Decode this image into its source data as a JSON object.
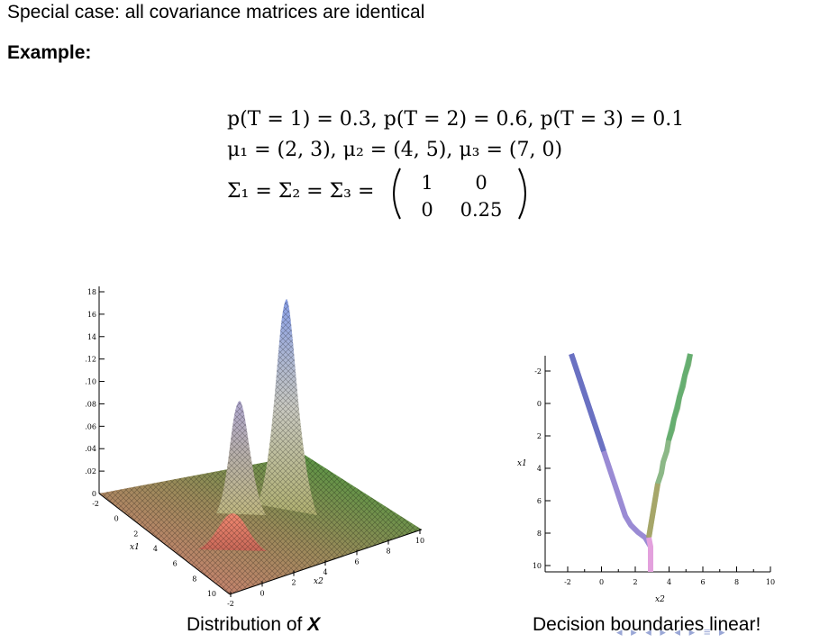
{
  "slide": {
    "heading": "Special case: all covariance matrices are identical",
    "example_label": "Example:",
    "eq_priors": "p(T = 1) = 0.3,  p(T = 2) = 0.6,  p(T = 3) = 0.1",
    "eq_means": "μ₁ = (2, 3),  μ₂ = (4, 5),  μ₃ = (7, 0)",
    "eq_cov_lhs": "Σ₁ = Σ₂ = Σ₃ =",
    "matrix": [
      [
        "1",
        "0"
      ],
      [
        "0",
        "0.25"
      ]
    ],
    "caption_left_text": "Distribution of ",
    "caption_left_var": "X",
    "caption_right": "Decision boundaries linear!",
    "nav_symbols": "◂ ▸ ◂ ▸ ◂ ▸ ≡ ▸"
  },
  "surface_plot": {
    "z_ticks": [
      "18",
      "16",
      "14",
      ".12",
      ".10",
      ".08",
      ".06",
      ".04",
      ".02",
      "0"
    ],
    "x1_ticks": [
      "-2",
      "0",
      "2",
      "4",
      "6",
      "8",
      "10"
    ],
    "x2_ticks": [
      "-2",
      "0",
      "2",
      "4",
      "6",
      "8",
      "10"
    ],
    "x1_label": "x1",
    "x2_label": "x2"
  },
  "boundary_plot": {
    "y_ticks": [
      "-2",
      "0",
      "2",
      "4",
      "6",
      "8",
      "10"
    ],
    "x_ticks": [
      "-2",
      "0",
      "2",
      "4",
      "6",
      "8",
      "10"
    ],
    "y_label": "x1",
    "x_label": "x2"
  }
}
